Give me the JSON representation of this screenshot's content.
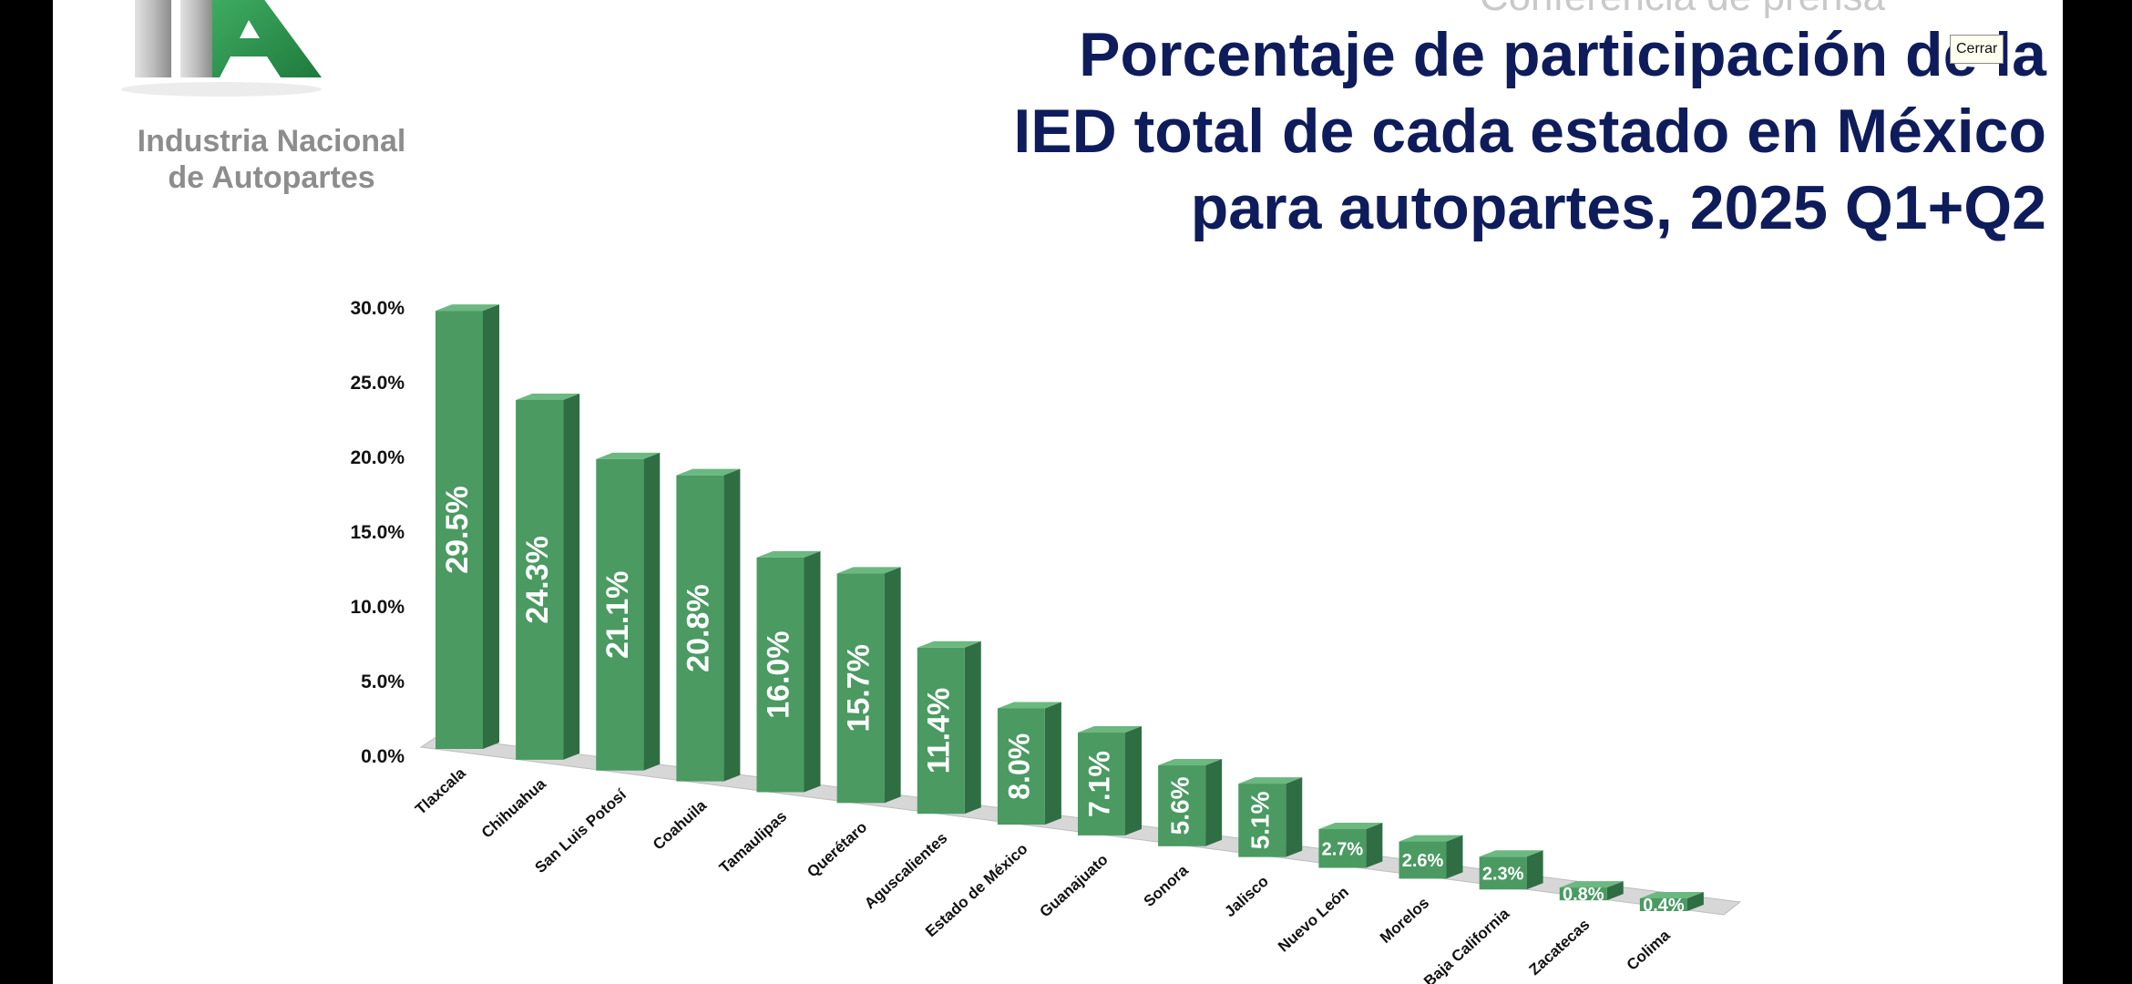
{
  "logo": {
    "line1": "Industria Nacional",
    "line2": "de Autopartes"
  },
  "header": {
    "subtitle_partial": "Conferencia de prensa",
    "title_line1": "Porcentaje de participación de la",
    "title_line2": "IED total de cada estado en México",
    "title_line3": "para autopartes, 2025 Q1+Q2"
  },
  "tooltip": {
    "close_label": "Cerrar"
  },
  "colors": {
    "title": "#0f1c5b",
    "bar_front": "#4a9a62",
    "bar_side": "#2f6e43",
    "bar_top": "#6bb880",
    "logo_gray": "#8d8d8d"
  },
  "chart_data": {
    "type": "bar",
    "style": "3d",
    "categories": [
      "Tlaxcala",
      "Chihuahua",
      "San Luis Potosí",
      "Coahuila",
      "Tamaulipas",
      "Querétaro",
      "Aguscalientes",
      "Estado de México",
      "Guanajuato",
      "Sonora",
      "Jalisco",
      "Nuevo León",
      "Morelos",
      "Baja California",
      "Zacatecas",
      "Colima"
    ],
    "values": [
      29.5,
      24.3,
      21.1,
      20.8,
      16.0,
      15.7,
      11.4,
      8.0,
      7.1,
      5.6,
      5.1,
      2.7,
      2.6,
      2.3,
      0.8,
      0.4
    ],
    "data_labels": [
      "29.5%",
      "24.3%",
      "21.1%",
      "20.8%",
      "16.0%",
      "15.7%",
      "11.4%",
      "8.0%",
      "7.1%",
      "5.6%",
      "5.1%",
      "2.7%",
      "2.6%",
      "2.3%",
      "0.8%",
      "0.4%"
    ],
    "yticks": [
      "0.0%",
      "5.0%",
      "10.0%",
      "15.0%",
      "20.0%",
      "25.0%",
      "30.0%"
    ],
    "ylim": [
      0,
      30
    ],
    "xlabel": "",
    "ylabel": "",
    "grid": false,
    "legend": "none"
  }
}
